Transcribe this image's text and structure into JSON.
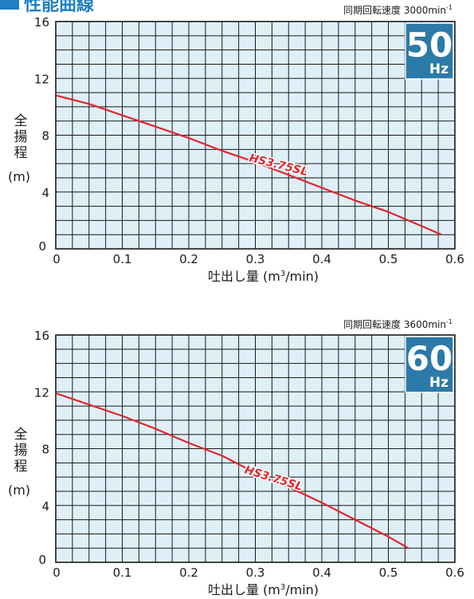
{
  "section": {
    "title": "性能曲線"
  },
  "colors": {
    "plot_bg": "#dfeff7",
    "grid": "#1a1a1a",
    "curve": "#e0262b",
    "badge": "#2b7aa8",
    "heading": "#1f7fc2"
  },
  "chart_data": [
    {
      "type": "line",
      "speed_label": "同期回転速度 3000min",
      "speed_sup": "-1",
      "badge_number": "50",
      "badge_unit": "Hz",
      "ylabel_chars": [
        "全",
        "揚",
        "程"
      ],
      "ylabel_unit": "(m)",
      "xlabel_main": "吐出し量 (m",
      "xlabel_sup": "3",
      "xlabel_tail": "/min)",
      "xlim": [
        0,
        0.6
      ],
      "ylim": [
        0,
        16
      ],
      "xticks": [
        "0",
        "0.1",
        "0.2",
        "0.3",
        "0.4",
        "0.5",
        "0.6"
      ],
      "yticks": [
        "0",
        "4",
        "8",
        "12",
        "16"
      ],
      "grid": true,
      "series": [
        {
          "name": "HS3.75SL",
          "x": [
            0,
            0.05,
            0.1,
            0.15,
            0.2,
            0.25,
            0.3,
            0.35,
            0.4,
            0.45,
            0.5,
            0.55,
            0.58
          ],
          "y": [
            10.8,
            10.2,
            9.4,
            8.6,
            7.8,
            6.9,
            6.1,
            5.2,
            4.3,
            3.4,
            2.6,
            1.6,
            1.0
          ]
        }
      ]
    },
    {
      "type": "line",
      "speed_label": "同期回転速度 3600min",
      "speed_sup": "-1",
      "badge_number": "60",
      "badge_unit": "Hz",
      "ylabel_chars": [
        "全",
        "揚",
        "程"
      ],
      "ylabel_unit": "(m)",
      "xlabel_main": "吐出し量 (m",
      "xlabel_sup": "3",
      "xlabel_tail": "/min)",
      "xlim": [
        0,
        0.6
      ],
      "ylim": [
        0,
        16
      ],
      "xticks": [
        "0",
        "0.1",
        "0.2",
        "0.3",
        "0.4",
        "0.5",
        "0.6"
      ],
      "yticks": [
        "0",
        "4",
        "8",
        "12",
        "16"
      ],
      "grid": true,
      "series": [
        {
          "name": "HS3.75SL",
          "x": [
            0,
            0.05,
            0.1,
            0.15,
            0.2,
            0.25,
            0.3,
            0.35,
            0.4,
            0.45,
            0.5,
            0.53
          ],
          "y": [
            11.9,
            11.1,
            10.3,
            9.4,
            8.4,
            7.5,
            6.3,
            5.3,
            4.2,
            3.0,
            1.8,
            1.0
          ]
        }
      ]
    }
  ]
}
